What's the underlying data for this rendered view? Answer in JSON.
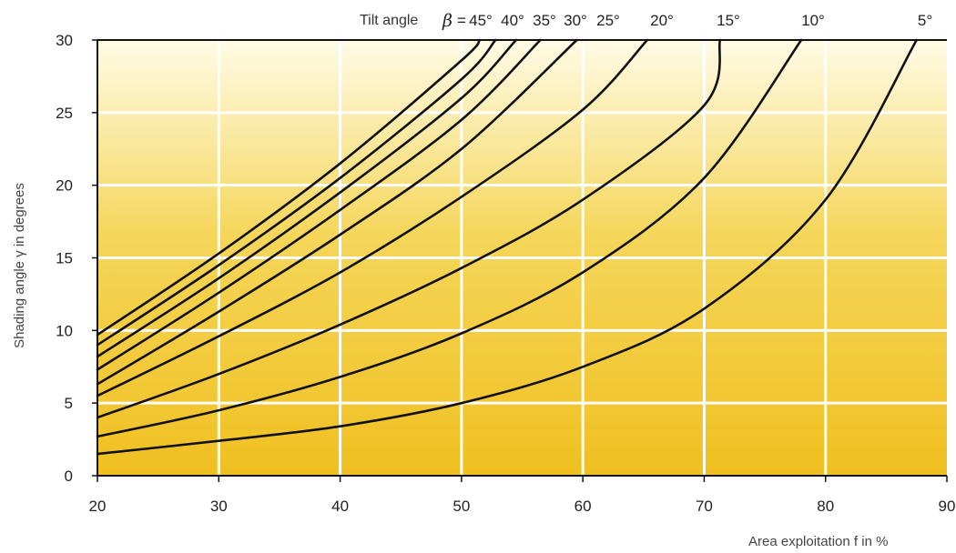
{
  "chart_data": {
    "type": "line",
    "title_prefix": "Tilt angle",
    "title_symbol": "β",
    "title_suffix": "=",
    "xlabel": "Area exploitation f in %",
    "ylabel": "Shading angle γ in degrees",
    "xlim": [
      20,
      90
    ],
    "ylim": [
      0,
      30
    ],
    "xticks": [
      "20",
      "30",
      "40",
      "50",
      "60",
      "70",
      "80",
      "90"
    ],
    "yticks": [
      "0",
      "5",
      "10",
      "15",
      "20",
      "25",
      "30"
    ],
    "grid": true,
    "background_gradient": [
      "#fffbe6",
      "#f5d65a",
      "#f0c020"
    ],
    "line_color": "#111111",
    "series": [
      {
        "name": "45°",
        "points": [
          [
            20,
            9.7
          ],
          [
            30,
            15.3
          ],
          [
            40,
            21.5
          ],
          [
            50,
            28.6
          ],
          [
            51.5,
            30
          ]
        ]
      },
      {
        "name": "40°",
        "points": [
          [
            20,
            9.0
          ],
          [
            30,
            14.5
          ],
          [
            40,
            20.5
          ],
          [
            50,
            27.3
          ],
          [
            52.8,
            30
          ]
        ]
      },
      {
        "name": "35°",
        "points": [
          [
            20,
            8.2
          ],
          [
            30,
            13.6
          ],
          [
            40,
            19.5
          ],
          [
            50,
            26.0
          ],
          [
            54.5,
            30
          ]
        ]
      },
      {
        "name": "30°",
        "points": [
          [
            20,
            7.3
          ],
          [
            30,
            12.6
          ],
          [
            40,
            18.3
          ],
          [
            50,
            24.5
          ],
          [
            56.5,
            30
          ]
        ]
      },
      {
        "name": "25°",
        "points": [
          [
            20,
            6.3
          ],
          [
            30,
            11.3
          ],
          [
            40,
            16.6
          ],
          [
            50,
            22.5
          ],
          [
            59.5,
            30
          ]
        ]
      },
      {
        "name": "20°",
        "points": [
          [
            20,
            5.5
          ],
          [
            30,
            9.6
          ],
          [
            40,
            14.0
          ],
          [
            50,
            19.2
          ],
          [
            60,
            25.2
          ],
          [
            65.3,
            30
          ]
        ]
      },
      {
        "name": "15°",
        "points": [
          [
            20,
            4.0
          ],
          [
            30,
            7.0
          ],
          [
            40,
            10.4
          ],
          [
            50,
            14.3
          ],
          [
            60,
            19.0
          ],
          [
            70,
            25.5
          ],
          [
            71.3,
            30
          ]
        ]
      },
      {
        "name": "10°",
        "points": [
          [
            20,
            2.7
          ],
          [
            30,
            4.5
          ],
          [
            40,
            6.8
          ],
          [
            50,
            9.8
          ],
          [
            60,
            14.0
          ],
          [
            70,
            20.5
          ],
          [
            78,
            30
          ]
        ]
      },
      {
        "name": "5°",
        "points": [
          [
            20,
            1.5
          ],
          [
            30,
            2.4
          ],
          [
            40,
            3.4
          ],
          [
            50,
            5.0
          ],
          [
            60,
            7.5
          ],
          [
            70,
            11.5
          ],
          [
            80,
            19.0
          ],
          [
            87.5,
            30
          ]
        ]
      }
    ]
  }
}
